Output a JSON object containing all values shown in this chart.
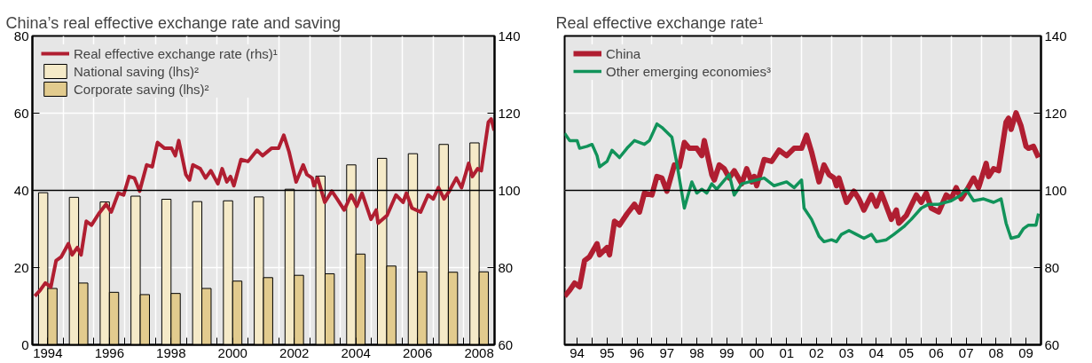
{
  "chart_data": [
    {
      "type": "bar",
      "title": "China’s real effective exchange rate and saving",
      "x": [
        1994.5,
        1995.5,
        1996.5,
        1997.5,
        1998.5,
        1999.5,
        2000.5,
        2001.5,
        2002.5,
        2003.5,
        2004.5,
        2005.5,
        2006.5,
        2007.5,
        2008.5
      ],
      "xlim": [
        1994,
        2009
      ],
      "xticks": [
        {
          "value": 1994.5,
          "label": "1994"
        },
        {
          "value": 1996.5,
          "label": "1996"
        },
        {
          "value": 1998.5,
          "label": "1998"
        },
        {
          "value": 2000.5,
          "label": "2000"
        },
        {
          "value": 2002.5,
          "label": "2002"
        },
        {
          "value": 2004.5,
          "label": "2004"
        },
        {
          "value": 2006.5,
          "label": "2006"
        },
        {
          "value": 2008.5,
          "label": "2008"
        },
        {
          "value": 1995,
          "label": null
        },
        {
          "value": 1996,
          "label": null
        },
        {
          "value": 1997,
          "label": null
        },
        {
          "value": 1998,
          "label": null
        },
        {
          "value": 1999,
          "label": null
        },
        {
          "value": 2000,
          "label": null
        },
        {
          "value": 2001,
          "label": null
        },
        {
          "value": 2002,
          "label": null
        },
        {
          "value": 2003,
          "label": null
        },
        {
          "value": 2004,
          "label": null
        },
        {
          "value": 2005,
          "label": null
        },
        {
          "value": 2006,
          "label": null
        },
        {
          "value": 2007,
          "label": null
        },
        {
          "value": 2008,
          "label": null
        }
      ],
      "ylim": [
        0,
        80
      ],
      "yticks": [
        0,
        20,
        40,
        60,
        80
      ],
      "y2lim": [
        60,
        140
      ],
      "y2ticks": [
        60,
        80,
        100,
        120,
        140
      ],
      "grid": true,
      "legend": "top left",
      "ref_lines": [
        {
          "axis": "y2",
          "value": 100,
          "color": "#000000"
        }
      ],
      "series": [
        {
          "name": "Real effective exchange rate (rhs)¹",
          "type": "line",
          "axis": "y2",
          "color": "#b01e31",
          "x": [
            1994.08,
            1994.25,
            1994.42,
            1994.6,
            1994.77,
            1994.94,
            1995.17,
            1995.29,
            1995.46,
            1995.58,
            1995.75,
            1995.92,
            1996.15,
            1996.39,
            1996.56,
            1996.79,
            1996.96,
            1997.14,
            1997.31,
            1997.48,
            1997.71,
            1997.89,
            1998.06,
            1998.29,
            1998.52,
            1998.64,
            1998.75,
            1998.98,
            1999.1,
            1999.21,
            1999.45,
            1999.62,
            1999.79,
            2000.02,
            2000.16,
            2000.31,
            2000.43,
            2000.54,
            2000.77,
            2001.0,
            2001.29,
            2001.47,
            2001.76,
            2001.99,
            2002.16,
            2002.33,
            2002.56,
            2002.79,
            2002.91,
            2003.08,
            2003.14,
            2003.26,
            2003.49,
            2003.72,
            2003.89,
            2004.12,
            2004.35,
            2004.53,
            2004.7,
            2004.99,
            2005.16,
            2005.22,
            2005.51,
            2005.8,
            2006.03,
            2006.14,
            2006.32,
            2006.6,
            2006.84,
            2007.01,
            2007.18,
            2007.36,
            2007.53,
            2007.76,
            2007.93,
            2008.16,
            2008.28,
            2008.45,
            2008.57,
            2008.8,
            2008.89,
            2008.99
          ],
          "values": [
            72.6,
            74.1,
            76.0,
            75.0,
            81.8,
            82.8,
            86.2,
            83.3,
            85.2,
            83.3,
            92.0,
            91.0,
            93.9,
            96.4,
            94.4,
            99.3,
            98.8,
            103.6,
            103.2,
            99.8,
            106.6,
            106.1,
            112.4,
            110.9,
            110.9,
            109.0,
            112.9,
            104.1,
            102.7,
            106.6,
            105.6,
            103.2,
            105.1,
            101.7,
            105.6,
            102.2,
            103.6,
            101.2,
            108.0,
            107.5,
            110.4,
            109.0,
            110.9,
            110.9,
            114.3,
            110.0,
            102.2,
            106.6,
            104.1,
            103.2,
            101.2,
            103.2,
            96.9,
            99.8,
            97.8,
            94.9,
            98.8,
            95.9,
            99.3,
            92.5,
            94.9,
            91.5,
            93.5,
            98.8,
            96.9,
            99.3,
            95.4,
            94.4,
            98.8,
            97.8,
            100.7,
            97.8,
            99.8,
            103.2,
            100.7,
            107.0,
            103.6,
            105.6,
            105.1,
            117.7,
            118.5,
            115.5
          ]
        },
        {
          "name": "National saving (lhs)²",
          "color": "#f5eac8",
          "values": [
            39.4,
            38.2,
            37.0,
            38.5,
            37.7,
            37.1,
            37.3,
            38.3,
            40.3,
            43.7,
            46.6,
            48.3,
            49.5,
            51.9,
            52.3
          ]
        },
        {
          "name": "Corporate saving (lhs)²",
          "color": "#e2cb8e",
          "values": [
            14.6,
            16.0,
            13.6,
            13.0,
            13.3,
            14.6,
            16.5,
            17.4,
            18.0,
            18.4,
            23.5,
            20.4,
            18.9,
            18.8,
            18.9
          ]
        }
      ]
    },
    {
      "type": "line",
      "title": "Real effective exchange rate¹",
      "xlim": [
        "1994-02",
        "2010-01"
      ],
      "xticks": [
        {
          "value": "1994-07",
          "label": "94"
        },
        {
          "value": "1995-07",
          "label": "95"
        },
        {
          "value": "1996-07",
          "label": "96"
        },
        {
          "value": "1997-07",
          "label": "97"
        },
        {
          "value": "1998-07",
          "label": "98"
        },
        {
          "value": "1999-07",
          "label": "99"
        },
        {
          "value": "2000-07",
          "label": "00"
        },
        {
          "value": "2001-07",
          "label": "01"
        },
        {
          "value": "2002-07",
          "label": "02"
        },
        {
          "value": "2003-07",
          "label": "03"
        },
        {
          "value": "2004-07",
          "label": "04"
        },
        {
          "value": "2005-07",
          "label": "05"
        },
        {
          "value": "2006-07",
          "label": "06"
        },
        {
          "value": "2007-07",
          "label": "07"
        },
        {
          "value": "2008-07",
          "label": "08"
        },
        {
          "value": "2009-07",
          "label": "09"
        },
        {
          "value": "1995-01",
          "label": null
        },
        {
          "value": "1996-01",
          "label": null
        },
        {
          "value": "1997-01",
          "label": null
        },
        {
          "value": "1998-01",
          "label": null
        },
        {
          "value": "1999-01",
          "label": null
        },
        {
          "value": "2000-01",
          "label": null
        },
        {
          "value": "2001-01",
          "label": null
        },
        {
          "value": "2002-01",
          "label": null
        },
        {
          "value": "2003-01",
          "label": null
        },
        {
          "value": "2004-01",
          "label": null
        },
        {
          "value": "2005-01",
          "label": null
        },
        {
          "value": "2006-01",
          "label": null
        },
        {
          "value": "2007-01",
          "label": null
        },
        {
          "value": "2008-01",
          "label": null
        },
        {
          "value": "2009-01",
          "label": null
        }
      ],
      "y2lim": [
        60,
        140
      ],
      "y2ticks": [
        60,
        80,
        100,
        120,
        140
      ],
      "grid": true,
      "legend": "top left",
      "ref_lines": [
        {
          "axis": "y2",
          "value": 100,
          "color": "#000000"
        }
      ],
      "series": [
        {
          "name": "China",
          "axis": "y2",
          "color": "#b01e31",
          "x": [
            "1994-02",
            "1994-04",
            "1994-06",
            "1994-08",
            "1994-10",
            "1994-12",
            "1995-03",
            "1995-04",
            "1995-07",
            "1995-08",
            "1995-10",
            "1995-12",
            "1996-03",
            "1996-06",
            "1996-08",
            "1996-10",
            "1997-01",
            "1997-03",
            "1997-05",
            "1997-07",
            "1997-10",
            "1997-12",
            "1998-02",
            "1998-04",
            "1998-07",
            "1998-09",
            "1998-10",
            "1999-01",
            "1999-02",
            "1999-04",
            "1999-06",
            "1999-08",
            "1999-10",
            "2000-01",
            "2000-03",
            "2000-05",
            "2000-06",
            "2000-07",
            "2000-10",
            "2001-01",
            "2001-04",
            "2001-07",
            "2001-10",
            "2002-01",
            "2002-03",
            "2002-05",
            "2002-08",
            "2002-10",
            "2002-12",
            "2003-02",
            "2003-03",
            "2003-04",
            "2003-07",
            "2003-10",
            "2003-12",
            "2004-02",
            "2004-05",
            "2004-07",
            "2004-09",
            "2005-01",
            "2005-03",
            "2005-04",
            "2005-07",
            "2005-11",
            "2006-01",
            "2006-03",
            "2006-05",
            "2006-08",
            "2006-11",
            "2007-01",
            "2007-03",
            "2007-05",
            "2007-07",
            "2007-10",
            "2007-12",
            "2008-03",
            "2008-04",
            "2008-06",
            "2008-08",
            "2008-11",
            "2008-12",
            "2009-01",
            "2009-03",
            "2009-05",
            "2009-07",
            "2009-08",
            "2009-10",
            "2009-12"
          ],
          "values": [
            72.6,
            74.1,
            76.0,
            75.0,
            81.8,
            82.8,
            86.2,
            83.3,
            85.2,
            83.3,
            92.0,
            91.0,
            93.9,
            96.4,
            94.4,
            99.3,
            98.8,
            103.6,
            103.2,
            99.8,
            106.6,
            106.1,
            112.4,
            110.9,
            110.9,
            109.0,
            112.9,
            104.1,
            102.7,
            106.6,
            105.6,
            103.2,
            105.1,
            101.7,
            105.6,
            102.2,
            103.6,
            101.2,
            108.0,
            107.5,
            110.4,
            109.0,
            110.9,
            110.9,
            114.3,
            110.0,
            102.2,
            106.6,
            104.1,
            103.2,
            101.2,
            103.2,
            96.9,
            99.8,
            97.8,
            94.9,
            98.8,
            95.9,
            99.3,
            92.5,
            94.9,
            91.5,
            93.5,
            98.8,
            96.9,
            99.3,
            95.4,
            94.4,
            98.8,
            97.8,
            100.7,
            97.8,
            99.8,
            103.2,
            100.7,
            107.0,
            103.6,
            105.6,
            105.1,
            117.7,
            118.7,
            115.8,
            120.1,
            116.7,
            111.4,
            110.9,
            111.4,
            108.5
          ]
        },
        {
          "name": "Other emerging economies³",
          "axis": "y2",
          "color": "#11935a",
          "x": [
            "1994-02",
            "1994-04",
            "1994-07",
            "1994-08",
            "1994-11",
            "1995-01",
            "1995-03",
            "1995-04",
            "1995-07",
            "1995-09",
            "1995-12",
            "1996-03",
            "1996-06",
            "1996-10",
            "1996-12",
            "1997-03",
            "1997-05",
            "1997-09",
            "1997-11",
            "1998-01",
            "1998-02",
            "1998-05",
            "1998-07",
            "1998-09",
            "1998-11",
            "1999-01",
            "1999-03",
            "1999-08",
            "1999-10",
            "2000-01",
            "2000-04",
            "2000-10",
            "2001-02",
            "2001-07",
            "2001-10",
            "2002-01",
            "2002-02",
            "2002-05",
            "2002-08",
            "2002-10",
            "2003-01",
            "2003-03",
            "2003-05",
            "2003-08",
            "2003-11",
            "2004-02",
            "2004-05",
            "2004-07",
            "2004-11",
            "2005-02",
            "2005-06",
            "2005-09",
            "2006-01",
            "2006-04",
            "2006-08",
            "2007-01",
            "2007-05",
            "2007-07",
            "2007-10",
            "2008-02",
            "2008-06",
            "2008-09",
            "2008-11",
            "2009-01",
            "2009-04",
            "2009-06",
            "2009-08",
            "2009-11",
            "2009-12"
          ],
          "values": [
            114.8,
            112.9,
            112.9,
            110.9,
            111.4,
            111.9,
            109.0,
            106.1,
            107.5,
            110.4,
            108.5,
            110.9,
            112.9,
            111.9,
            112.9,
            117.2,
            116.3,
            113.8,
            107.0,
            99.3,
            95.4,
            102.2,
            99.3,
            100.3,
            99.3,
            101.7,
            100.3,
            104.1,
            98.8,
            101.7,
            102.2,
            103.2,
            101.2,
            102.2,
            100.7,
            102.7,
            95.4,
            92.5,
            88.1,
            86.7,
            87.2,
            86.7,
            88.6,
            89.6,
            88.6,
            87.6,
            88.6,
            86.7,
            87.2,
            88.6,
            90.6,
            92.5,
            95.4,
            96.4,
            96.4,
            97.3,
            98.8,
            100.3,
            97.3,
            97.8,
            96.9,
            97.8,
            91.5,
            87.6,
            88.1,
            90.1,
            91.0,
            91.0,
            94.0
          ]
        }
      ]
    }
  ]
}
